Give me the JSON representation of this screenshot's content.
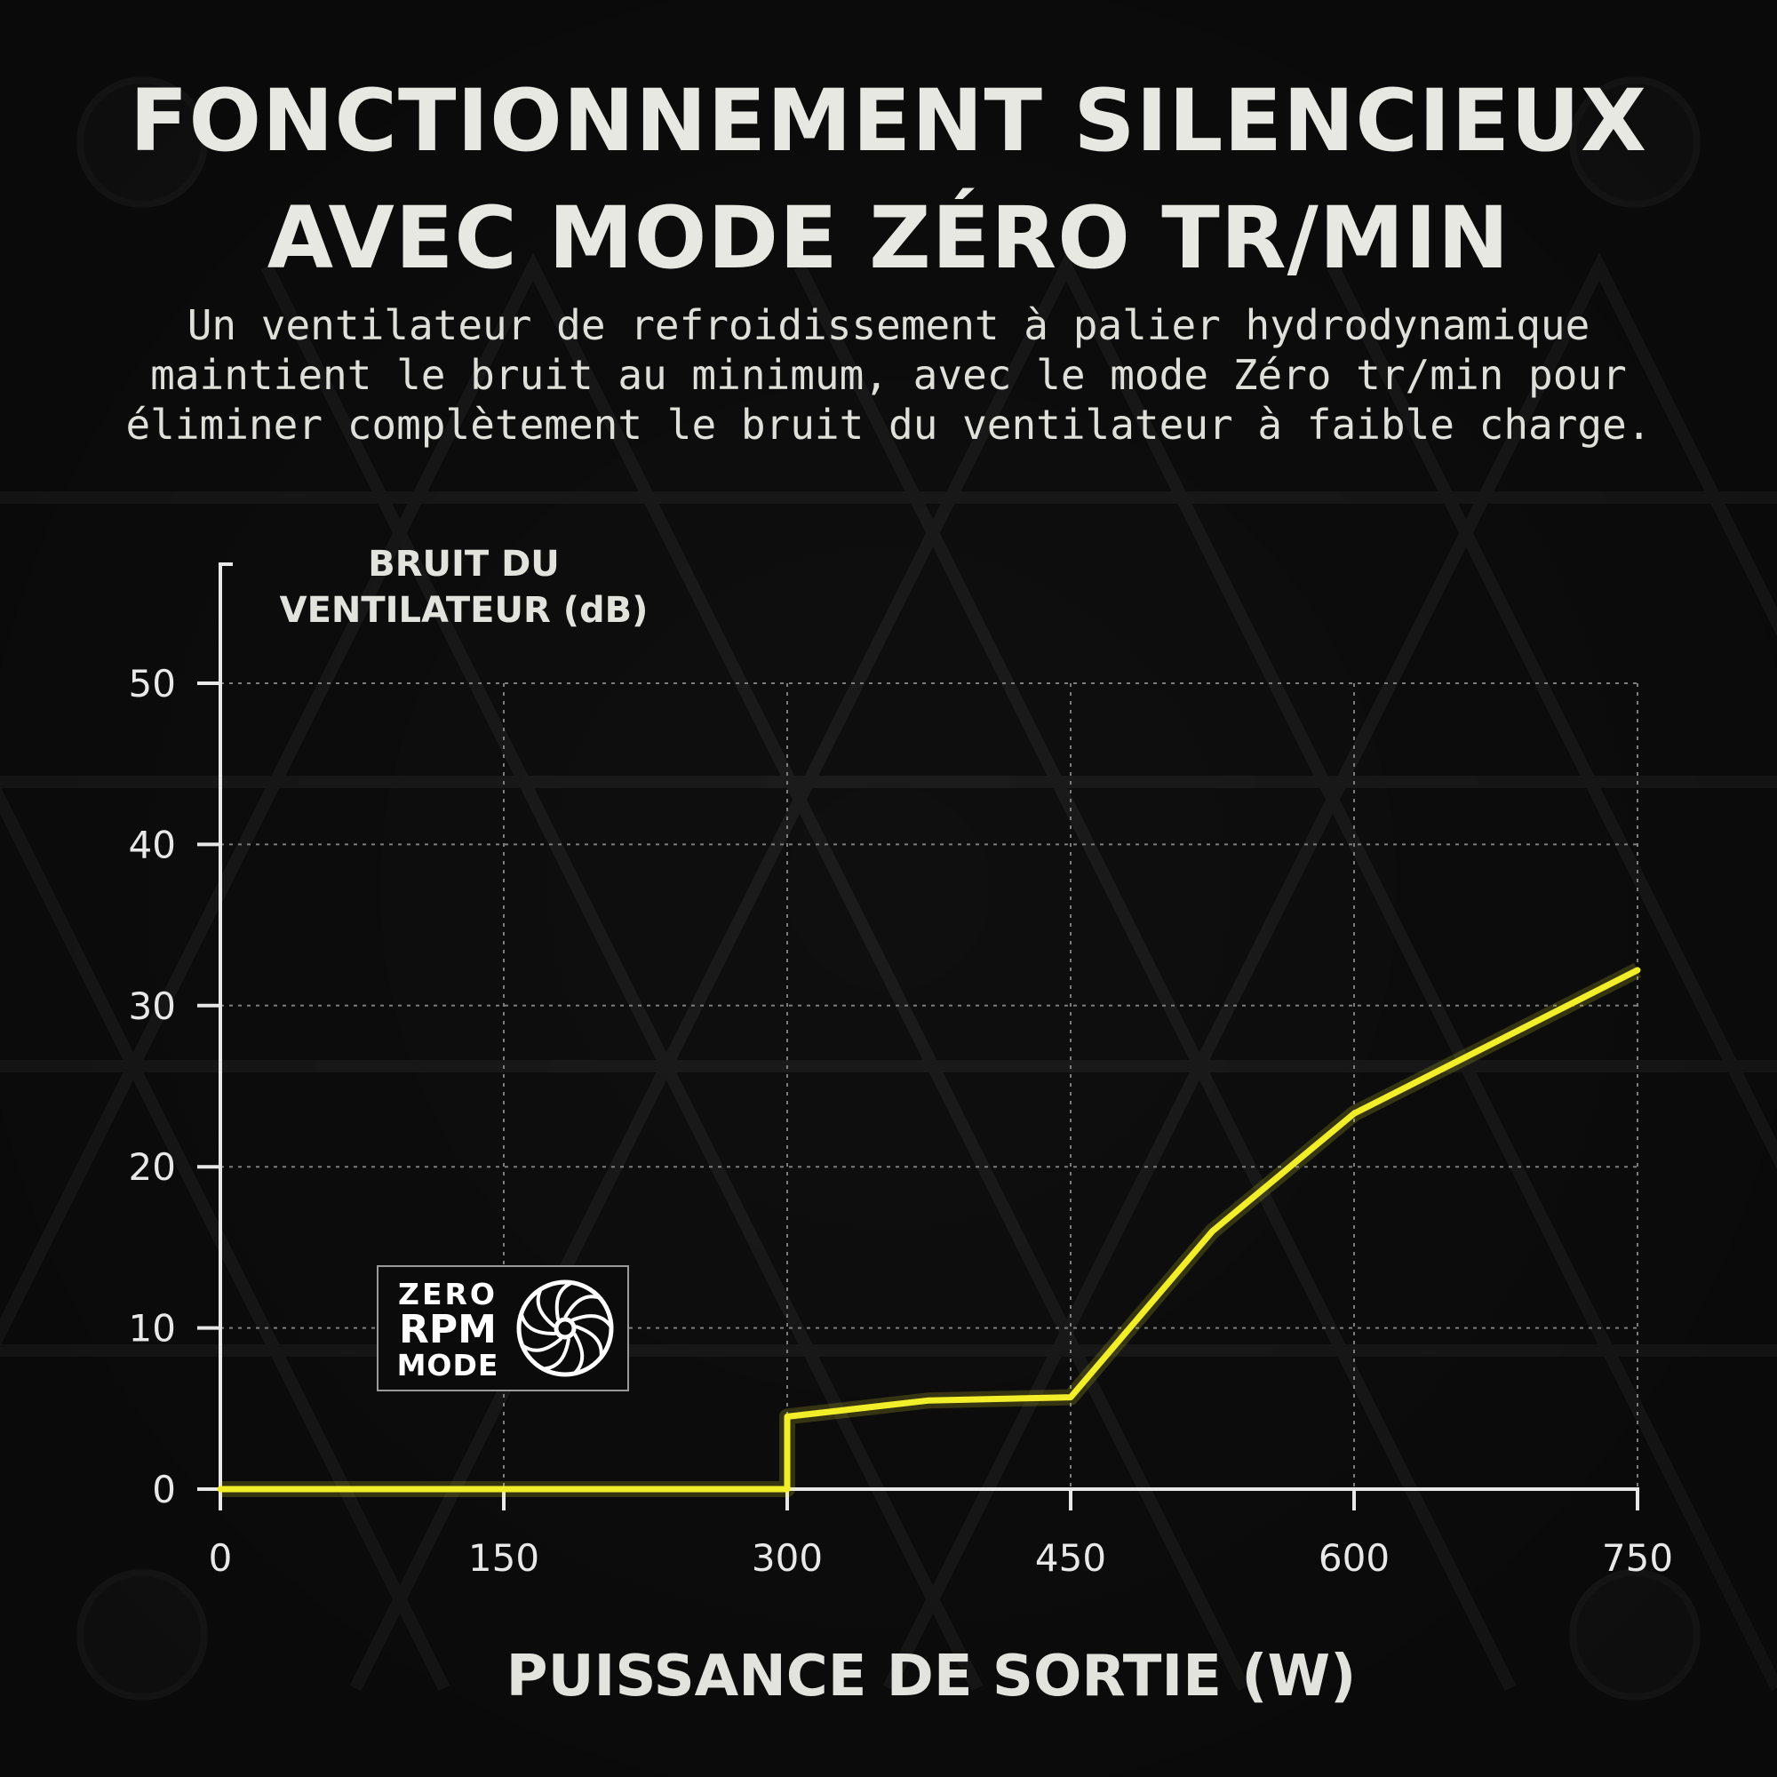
{
  "title_lines": [
    "FONCTIONNEMENT SILENCIEUX",
    "AVEC MODE ZÉRO TR/MIN"
  ],
  "subtitle_lines": [
    "Un ventilateur de refroidissement à palier hydrodynamique",
    "maintient le bruit au minimum, avec le mode Zéro tr/min pour",
    "éliminer complètement le bruit du ventilateur à faible charge."
  ],
  "badge": {
    "line1": "ZERO",
    "line2": "RPM",
    "line3": "MODE",
    "icon": "fan-icon"
  },
  "colors": {
    "line": "#f2ee2a",
    "background": "#0f0f0f",
    "grid": "#8a8a8a",
    "text": "#e8e8e2"
  },
  "chart_data": {
    "type": "line",
    "ylabel_lines": [
      "BRUIT DU",
      "VENTILATEUR (dB)"
    ],
    "xlabel": "PUISSANCE DE SORTIE (W)",
    "xlim": [
      0,
      750
    ],
    "ylim": [
      0,
      55
    ],
    "x_ticks": [
      "0",
      "150",
      "300",
      "450",
      "600",
      "750"
    ],
    "x_tick_values": [
      0,
      150,
      300,
      450,
      600,
      750
    ],
    "y_ticks": [
      "0",
      "10",
      "20",
      "30",
      "40",
      "50"
    ],
    "y_tick_values": [
      0,
      10,
      20,
      30,
      40,
      50
    ],
    "grid": true,
    "series": [
      {
        "x": [
          0,
          300,
          300,
          375,
          450,
          525,
          600,
          750
        ],
        "y": [
          0,
          0,
          4.5,
          5.5,
          5.7,
          16,
          23.3,
          32.2
        ]
      }
    ]
  }
}
